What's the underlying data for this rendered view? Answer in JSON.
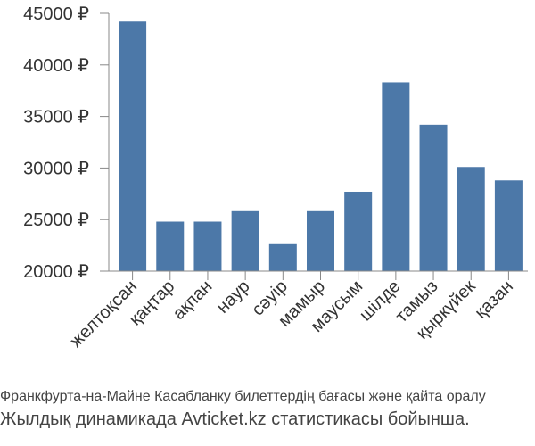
{
  "colors": {
    "bar": "#4c78a8",
    "axis": "#888888",
    "grid": "#dddddd",
    "text": "#333333"
  },
  "chart_data": {
    "type": "bar",
    "categories": [
      "желтоқсан",
      "қаңтар",
      "ақпан",
      "наур",
      "сәуір",
      "мамыр",
      "маусым",
      "шілде",
      "тамыз",
      "қыркүйек",
      "қазан"
    ],
    "values": [
      44200,
      24800,
      24800,
      25900,
      22700,
      25900,
      27700,
      38300,
      34200,
      30100,
      28800
    ],
    "y_ticks": [
      20000,
      25000,
      30000,
      35000,
      40000,
      45000
    ],
    "y_tick_labels": [
      "20000 ₽",
      "25000 ₽",
      "30000 ₽",
      "35000 ₽",
      "40000 ₽",
      "45000 ₽"
    ],
    "ylim": [
      20000,
      45000
    ],
    "grid": false,
    "title": "",
    "xlabel": "",
    "ylabel": ""
  },
  "caption": {
    "line1": "Франкфурта-на-Майне Касабланку билеттердің бағасы және қайта оралу",
    "line2": "Жылдық динамикада Avticket.kz статистикасы бойынша."
  }
}
